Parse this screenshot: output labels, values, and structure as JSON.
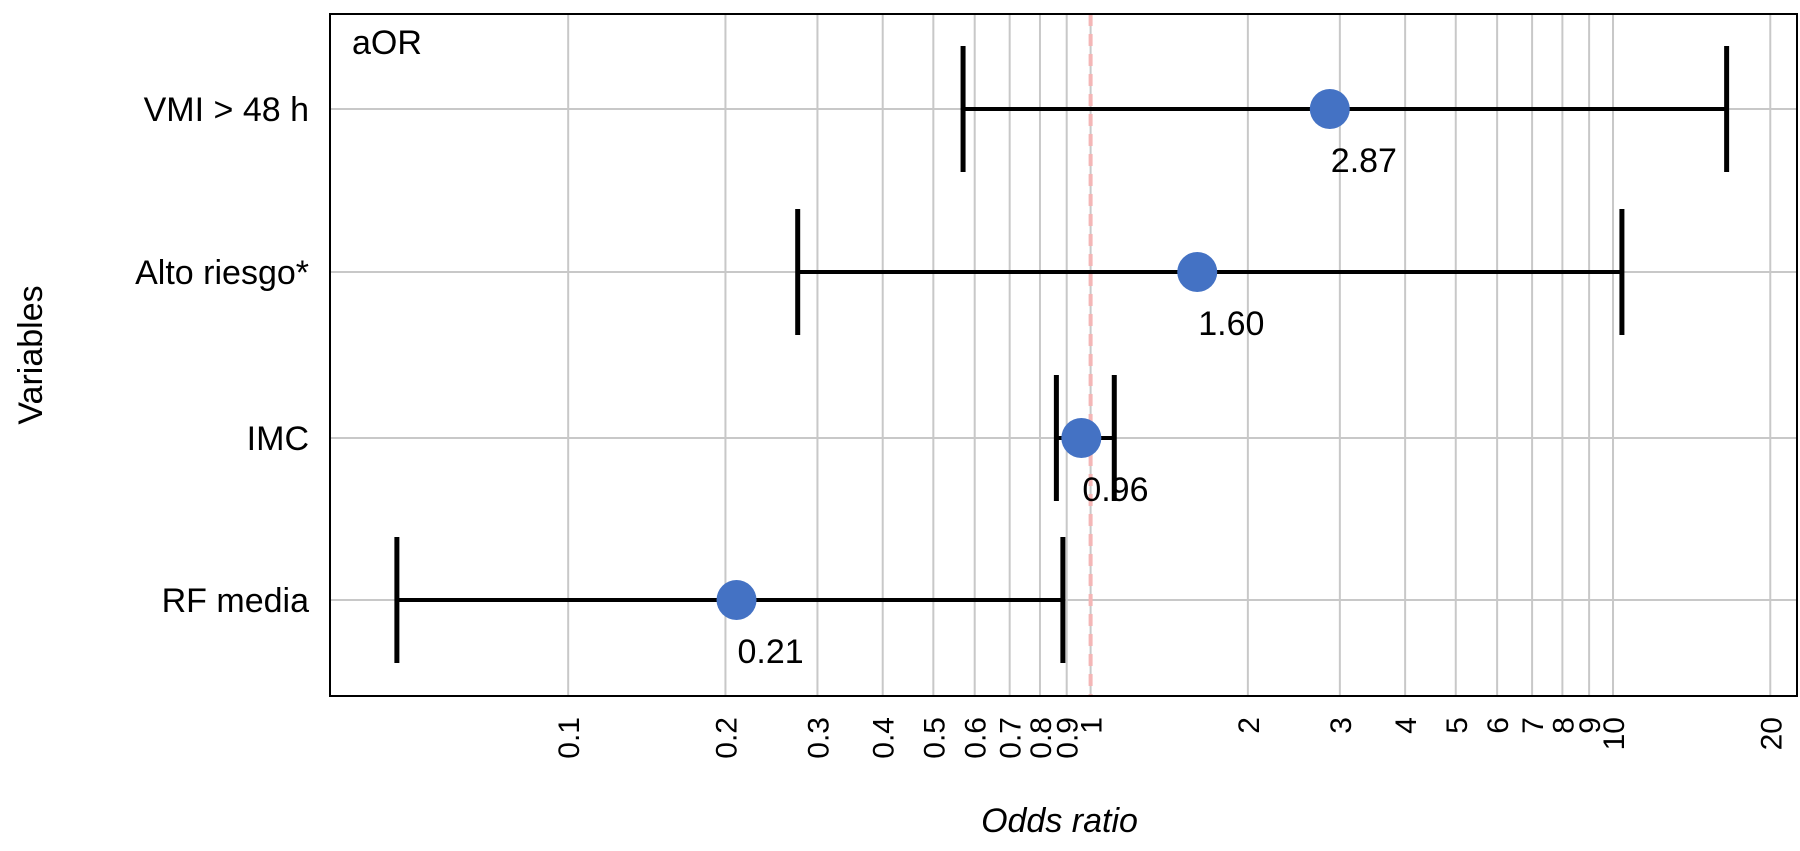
{
  "chart_data": {
    "type": "forest",
    "panel_label": "aOR",
    "xlabel": "Odds ratio",
    "ylabel": "Variables",
    "x_scale": "log",
    "xlim": [
      0.035,
      22.5
    ],
    "x_ticks": [
      0.1,
      0.2,
      0.3,
      0.4,
      0.5,
      0.6,
      0.7,
      0.8,
      0.9,
      1,
      2,
      3,
      4,
      5,
      6,
      7,
      8,
      9,
      10,
      20
    ],
    "x_tick_labels": [
      "0.1",
      "0.2",
      "0.3",
      "0.4",
      "0.5",
      "0.6",
      "0.7",
      "0.8",
      "0.9",
      "1",
      "2",
      "3",
      "4",
      "5",
      "6",
      "7",
      "8",
      "9",
      "10",
      "20"
    ],
    "reference_line": 1,
    "grid": true,
    "point_color": "#4472C4",
    "reference_color": "#F4B6B6",
    "categories": [
      "VMI > 48 h",
      "Alto riesgo*",
      "IMC",
      "RF media"
    ],
    "estimates": [
      {
        "label": "VMI > 48 h",
        "value": 2.87,
        "lower": 0.57,
        "upper": 16.5,
        "value_label": "2.87"
      },
      {
        "label": "Alto riesgo*",
        "value": 1.6,
        "lower": 0.275,
        "upper": 10.4,
        "value_label": "1.60"
      },
      {
        "label": "IMC",
        "value": 0.96,
        "lower": 0.86,
        "upper": 1.11,
        "value_label": "0.96"
      },
      {
        "label": "RF media",
        "value": 0.21,
        "lower": 0.047,
        "upper": 0.885,
        "value_label": "0.21"
      }
    ]
  }
}
